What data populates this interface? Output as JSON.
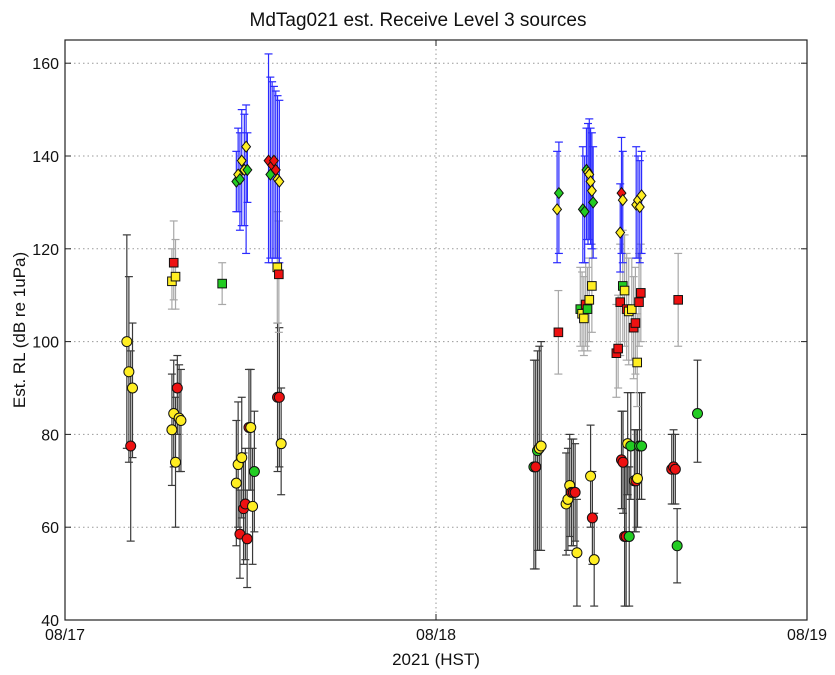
{
  "chart_data": {
    "type": "scatter",
    "title": "MdTag021 est. Receive Level 3 sources",
    "xlabel": "2021 (HST)",
    "ylabel": "Est. RL (dB re 1uPa)",
    "x_ticks": [
      "08/17",
      "08/18",
      "08/19"
    ],
    "y_ticks": [
      40,
      60,
      80,
      100,
      120,
      140,
      160
    ],
    "xlim": [
      "2021-08-17 00:00",
      "2021-08-19 00:00"
    ],
    "ylim": [
      40,
      165
    ],
    "grid": true,
    "legend": "none",
    "colors": {
      "blue_errorbar": "#2b2bff",
      "dark_errorbar": "#3a3a3a",
      "gray_errorbar": "#a8a8a8",
      "yellow": "#ffee22",
      "red": "#ee1111",
      "green": "#22cc22"
    },
    "series": [
      {
        "marker": "diamond",
        "errorbar_color": "blue",
        "points": [
          {
            "x": "2021-08-17 11:05",
            "y": 134.5,
            "lo": 128,
            "hi": 141,
            "fill": "green"
          },
          {
            "x": "2021-08-17 11:12",
            "y": 136,
            "lo": 128,
            "hi": 146,
            "fill": "yellow"
          },
          {
            "x": "2021-08-17 11:19",
            "y": 135,
            "lo": 124,
            "hi": 145,
            "fill": "green"
          },
          {
            "x": "2021-08-17 11:26",
            "y": 139,
            "lo": 125,
            "hi": 150,
            "fill": "yellow"
          },
          {
            "x": "2021-08-17 11:36",
            "y": 137,
            "lo": 125,
            "hi": 149,
            "fill": "yellow"
          },
          {
            "x": "2021-08-17 11:43",
            "y": 142,
            "lo": 119,
            "hi": 151,
            "fill": "yellow"
          },
          {
            "x": "2021-08-17 11:48",
            "y": 137,
            "lo": 130,
            "hi": 145,
            "fill": "green"
          },
          {
            "x": "2021-08-17 13:10",
            "y": 139,
            "lo": 117,
            "hi": 162,
            "fill": "red"
          },
          {
            "x": "2021-08-17 13:17",
            "y": 136,
            "lo": 118,
            "hi": 157,
            "fill": "green"
          },
          {
            "x": "2021-08-17 13:24",
            "y": 138,
            "lo": 117,
            "hi": 156,
            "fill": "red"
          },
          {
            "x": "2021-08-17 13:31",
            "y": 139,
            "lo": 118,
            "hi": 155,
            "fill": "red"
          },
          {
            "x": "2021-08-17 13:38",
            "y": 137,
            "lo": 118,
            "hi": 154,
            "fill": "red"
          },
          {
            "x": "2021-08-17 13:45",
            "y": 135,
            "lo": 118,
            "hi": 153,
            "fill": "yellow"
          },
          {
            "x": "2021-08-17 13:52",
            "y": 134.5,
            "lo": 117,
            "hi": 152,
            "fill": "yellow"
          },
          {
            "x": "2021-08-18 07:50",
            "y": 128.5,
            "lo": 117,
            "hi": 141,
            "fill": "yellow"
          },
          {
            "x": "2021-08-18 07:57",
            "y": 132,
            "lo": 119,
            "hi": 143,
            "fill": "green"
          },
          {
            "x": "2021-08-18 09:30",
            "y": 128.5,
            "lo": 117,
            "hi": 142,
            "fill": "green"
          },
          {
            "x": "2021-08-18 09:37",
            "y": 128,
            "lo": 117,
            "hi": 140,
            "fill": "green"
          },
          {
            "x": "2021-08-18 09:44",
            "y": 137,
            "lo": 122,
            "hi": 146,
            "fill": "green"
          },
          {
            "x": "2021-08-18 09:50",
            "y": 136.5,
            "lo": 121,
            "hi": 147,
            "fill": "yellow"
          },
          {
            "x": "2021-08-18 09:55",
            "y": 136,
            "lo": 122,
            "hi": 148,
            "fill": "yellow"
          },
          {
            "x": "2021-08-18 10:00",
            "y": 134.5,
            "lo": 121,
            "hi": 146,
            "fill": "yellow"
          },
          {
            "x": "2021-08-18 10:05",
            "y": 132.5,
            "lo": 120,
            "hi": 145,
            "fill": "yellow"
          },
          {
            "x": "2021-08-18 10:10",
            "y": 130,
            "lo": 118,
            "hi": 142,
            "fill": "green"
          },
          {
            "x": "2021-08-18 11:55",
            "y": 123.5,
            "lo": 115,
            "hi": 134,
            "fill": "yellow"
          },
          {
            "x": "2021-08-18 12:00",
            "y": 132,
            "lo": 119,
            "hi": 144,
            "fill": "red"
          },
          {
            "x": "2021-08-18 12:05",
            "y": 130.5,
            "lo": 117,
            "hi": 141,
            "fill": "yellow"
          },
          {
            "x": "2021-08-18 12:57",
            "y": 129.5,
            "lo": 118,
            "hi": 142,
            "fill": "yellow"
          },
          {
            "x": "2021-08-18 13:04",
            "y": 130.5,
            "lo": 118,
            "hi": 140,
            "fill": "yellow"
          },
          {
            "x": "2021-08-18 13:11",
            "y": 129,
            "lo": 117,
            "hi": 139,
            "fill": "yellow"
          },
          {
            "x": "2021-08-18 13:18",
            "y": 131.5,
            "lo": 119,
            "hi": 141,
            "fill": "yellow"
          }
        ]
      },
      {
        "marker": "square",
        "errorbar_color": "gray",
        "points": [
          {
            "x": "2021-08-17 06:55",
            "y": 113,
            "lo": 107,
            "hi": 120,
            "fill": "yellow"
          },
          {
            "x": "2021-08-17 07:02",
            "y": 117,
            "lo": 109,
            "hi": 126,
            "fill": "red"
          },
          {
            "x": "2021-08-17 07:09",
            "y": 114,
            "lo": 107,
            "hi": 122,
            "fill": "yellow"
          },
          {
            "x": "2021-08-17 10:10",
            "y": 112.5,
            "lo": 108,
            "hi": 117,
            "fill": "green"
          },
          {
            "x": "2021-08-17 13:44",
            "y": 116,
            "lo": 104,
            "hi": 128,
            "fill": "yellow"
          },
          {
            "x": "2021-08-17 13:50",
            "y": 114.5,
            "lo": 102,
            "hi": 126,
            "fill": "red"
          },
          {
            "x": "2021-08-18 07:55",
            "y": 102,
            "lo": 93,
            "hi": 111,
            "fill": "red"
          },
          {
            "x": "2021-08-18 09:20",
            "y": 107,
            "lo": 99,
            "hi": 116,
            "fill": "green"
          },
          {
            "x": "2021-08-18 09:27",
            "y": 106,
            "lo": 98,
            "hi": 115,
            "fill": "yellow"
          },
          {
            "x": "2021-08-18 09:34",
            "y": 105,
            "lo": 97,
            "hi": 114,
            "fill": "yellow"
          },
          {
            "x": "2021-08-18 09:41",
            "y": 108,
            "lo": 99,
            "hi": 117,
            "fill": "red"
          },
          {
            "x": "2021-08-18 09:48",
            "y": 107,
            "lo": 98,
            "hi": 116,
            "fill": "green"
          },
          {
            "x": "2021-08-18 09:55",
            "y": 109,
            "lo": 100,
            "hi": 118,
            "fill": "yellow"
          },
          {
            "x": "2021-08-18 10:05",
            "y": 112,
            "lo": 102,
            "hi": 121,
            "fill": "yellow"
          },
          {
            "x": "2021-08-18 11:40",
            "y": 97.5,
            "lo": 88,
            "hi": 108,
            "fill": "red"
          },
          {
            "x": "2021-08-18 11:47",
            "y": 98.5,
            "lo": 90,
            "hi": 110,
            "fill": "red"
          },
          {
            "x": "2021-08-18 11:55",
            "y": 108.5,
            "lo": 97,
            "hi": 121,
            "fill": "red"
          },
          {
            "x": "2021-08-18 12:05",
            "y": 112,
            "lo": 100,
            "hi": 124,
            "fill": "green"
          },
          {
            "x": "2021-08-18 12:12",
            "y": 111,
            "lo": 99,
            "hi": 123,
            "fill": "yellow"
          },
          {
            "x": "2021-08-18 12:20",
            "y": 107,
            "lo": 96,
            "hi": 119,
            "fill": "red"
          },
          {
            "x": "2021-08-18 12:28",
            "y": 106.5,
            "lo": 95,
            "hi": 118,
            "fill": "yellow"
          },
          {
            "x": "2021-08-18 12:40",
            "y": 107,
            "lo": 96,
            "hi": 118,
            "fill": "yellow"
          },
          {
            "x": "2021-08-18 12:47",
            "y": 103,
            "lo": 92,
            "hi": 114,
            "fill": "red"
          },
          {
            "x": "2021-08-18 12:54",
            "y": 104,
            "lo": 93,
            "hi": 116,
            "fill": "red"
          },
          {
            "x": "2021-08-18 13:01",
            "y": 95.5,
            "lo": 86,
            "hi": 106,
            "fill": "yellow"
          },
          {
            "x": "2021-08-18 13:08",
            "y": 108.5,
            "lo": 99,
            "hi": 119,
            "fill": "red"
          },
          {
            "x": "2021-08-18 13:15",
            "y": 110.5,
            "lo": 100,
            "hi": 121,
            "fill": "red"
          },
          {
            "x": "2021-08-18 15:40",
            "y": 109,
            "lo": 99,
            "hi": 119,
            "fill": "red"
          }
        ]
      },
      {
        "marker": "circle",
        "errorbar_color": "dark",
        "points": [
          {
            "x": "2021-08-17 04:00",
            "y": 100,
            "lo": 77,
            "hi": 123,
            "fill": "yellow"
          },
          {
            "x": "2021-08-17 04:08",
            "y": 93.5,
            "lo": 74,
            "hi": 114,
            "fill": "yellow"
          },
          {
            "x": "2021-08-17 04:15",
            "y": 77.5,
            "lo": 57,
            "hi": 98,
            "fill": "red"
          },
          {
            "x": "2021-08-17 04:22",
            "y": 90,
            "lo": 75,
            "hi": 104,
            "fill": "yellow"
          },
          {
            "x": "2021-08-17 06:55",
            "y": 81,
            "lo": 69,
            "hi": 93,
            "fill": "yellow"
          },
          {
            "x": "2021-08-17 07:02",
            "y": 84.5,
            "lo": 73,
            "hi": 96,
            "fill": "yellow"
          },
          {
            "x": "2021-08-17 07:09",
            "y": 74,
            "lo": 60,
            "hi": 88,
            "fill": "yellow"
          },
          {
            "x": "2021-08-17 07:16",
            "y": 90,
            "lo": 80,
            "hi": 97,
            "fill": "red"
          },
          {
            "x": "2021-08-17 07:23",
            "y": 83.5,
            "lo": 72,
            "hi": 95,
            "fill": "yellow"
          },
          {
            "x": "2021-08-17 07:30",
            "y": 83,
            "lo": 72,
            "hi": 94,
            "fill": "yellow"
          },
          {
            "x": "2021-08-17 11:05",
            "y": 69.5,
            "lo": 56,
            "hi": 83,
            "fill": "yellow"
          },
          {
            "x": "2021-08-17 11:12",
            "y": 73.5,
            "lo": 60,
            "hi": 87,
            "fill": "yellow"
          },
          {
            "x": "2021-08-17 11:19",
            "y": 58.5,
            "lo": 49,
            "hi": 68,
            "fill": "red"
          },
          {
            "x": "2021-08-17 11:26",
            "y": 75,
            "lo": 62,
            "hi": 88,
            "fill": "yellow"
          },
          {
            "x": "2021-08-17 11:33",
            "y": 64,
            "lo": 52,
            "hi": 76,
            "fill": "red"
          },
          {
            "x": "2021-08-17 11:40",
            "y": 65,
            "lo": 53,
            "hi": 77,
            "fill": "red"
          },
          {
            "x": "2021-08-17 11:47",
            "y": 57.5,
            "lo": 47,
            "hi": 68,
            "fill": "red"
          },
          {
            "x": "2021-08-17 11:54",
            "y": 81.5,
            "lo": 68,
            "hi": 94,
            "fill": "red"
          },
          {
            "x": "2021-08-17 12:01",
            "y": 81.5,
            "lo": 68,
            "hi": 94,
            "fill": "yellow"
          },
          {
            "x": "2021-08-17 12:08",
            "y": 64.5,
            "lo": 52,
            "hi": 77,
            "fill": "yellow"
          },
          {
            "x": "2021-08-17 12:15",
            "y": 72,
            "lo": 59,
            "hi": 85,
            "fill": "green"
          },
          {
            "x": "2021-08-17 13:45",
            "y": 88,
            "lo": 72,
            "hi": 104,
            "fill": "red"
          },
          {
            "x": "2021-08-17 13:52",
            "y": 88,
            "lo": 73,
            "hi": 103,
            "fill": "red"
          },
          {
            "x": "2021-08-17 13:59",
            "y": 78,
            "lo": 67,
            "hi": 90,
            "fill": "yellow"
          },
          {
            "x": "2021-08-18 06:20",
            "y": 73,
            "lo": 51,
            "hi": 96,
            "fill": "green"
          },
          {
            "x": "2021-08-18 06:27",
            "y": 73,
            "lo": 51,
            "hi": 96,
            "fill": "red"
          },
          {
            "x": "2021-08-18 06:34",
            "y": 76.5,
            "lo": 55,
            "hi": 98,
            "fill": "green"
          },
          {
            "x": "2021-08-18 06:41",
            "y": 77,
            "lo": 55,
            "hi": 99,
            "fill": "yellow"
          },
          {
            "x": "2021-08-18 06:48",
            "y": 77.5,
            "lo": 55,
            "hi": 100,
            "fill": "yellow"
          },
          {
            "x": "2021-08-18 08:25",
            "y": 65,
            "lo": 54,
            "hi": 76,
            "fill": "yellow"
          },
          {
            "x": "2021-08-18 08:32",
            "y": 66,
            "lo": 55,
            "hi": 77,
            "fill": "yellow"
          },
          {
            "x": "2021-08-18 08:39",
            "y": 69,
            "lo": 58,
            "hi": 80,
            "fill": "yellow"
          },
          {
            "x": "2021-08-18 08:46",
            "y": 67.5,
            "lo": 56,
            "hi": 79,
            "fill": "red"
          },
          {
            "x": "2021-08-18 08:53",
            "y": 67.5,
            "lo": 56,
            "hi": 79,
            "fill": "red"
          },
          {
            "x": "2021-08-18 09:00",
            "y": 67.5,
            "lo": 57,
            "hi": 78,
            "fill": "red"
          },
          {
            "x": "2021-08-18 09:07",
            "y": 54.5,
            "lo": 43,
            "hi": 66,
            "fill": "yellow"
          },
          {
            "x": "2021-08-18 10:00",
            "y": 71,
            "lo": 60,
            "hi": 82,
            "fill": "yellow"
          },
          {
            "x": "2021-08-18 10:07",
            "y": 62,
            "lo": 52,
            "hi": 72,
            "fill": "red"
          },
          {
            "x": "2021-08-18 10:14",
            "y": 53,
            "lo": 43,
            "hi": 63,
            "fill": "yellow"
          },
          {
            "x": "2021-08-18 12:00",
            "y": 74.5,
            "lo": 64,
            "hi": 85,
            "fill": "red"
          },
          {
            "x": "2021-08-18 12:06",
            "y": 74,
            "lo": 63,
            "hi": 85,
            "fill": "red"
          },
          {
            "x": "2021-08-18 12:12",
            "y": 58,
            "lo": 43,
            "hi": 73,
            "fill": "red"
          },
          {
            "x": "2021-08-18 12:18",
            "y": 58,
            "lo": 43,
            "hi": 73,
            "fill": "red"
          },
          {
            "x": "2021-08-18 12:24",
            "y": 78,
            "lo": 67,
            "hi": 89,
            "fill": "yellow"
          },
          {
            "x": "2021-08-18 12:30",
            "y": 58,
            "lo": 43,
            "hi": 73,
            "fill": "green"
          },
          {
            "x": "2021-08-18 12:36",
            "y": 77.5,
            "lo": 66,
            "hi": 89,
            "fill": "green"
          },
          {
            "x": "2021-08-18 12:50",
            "y": 70,
            "lo": 59,
            "hi": 81,
            "fill": "yellow"
          },
          {
            "x": "2021-08-18 12:56",
            "y": 70,
            "lo": 59,
            "hi": 81,
            "fill": "red"
          },
          {
            "x": "2021-08-18 13:02",
            "y": 70.5,
            "lo": 60,
            "hi": 81,
            "fill": "yellow"
          },
          {
            "x": "2021-08-18 13:10",
            "y": 77.5,
            "lo": 66,
            "hi": 89,
            "fill": "green"
          },
          {
            "x": "2021-08-18 13:18",
            "y": 77.5,
            "lo": 66,
            "hi": 89,
            "fill": "green"
          },
          {
            "x": "2021-08-18 15:15",
            "y": 72.5,
            "lo": 65,
            "hi": 80,
            "fill": "red"
          },
          {
            "x": "2021-08-18 15:22",
            "y": 73,
            "lo": 65,
            "hi": 81,
            "fill": "red"
          },
          {
            "x": "2021-08-18 15:29",
            "y": 72.5,
            "lo": 65,
            "hi": 80,
            "fill": "red"
          },
          {
            "x": "2021-08-18 15:36",
            "y": 56,
            "lo": 48,
            "hi": 64,
            "fill": "green"
          },
          {
            "x": "2021-08-18 16:55",
            "y": 84.5,
            "lo": 74,
            "hi": 96,
            "fill": "green"
          }
        ]
      }
    ]
  }
}
